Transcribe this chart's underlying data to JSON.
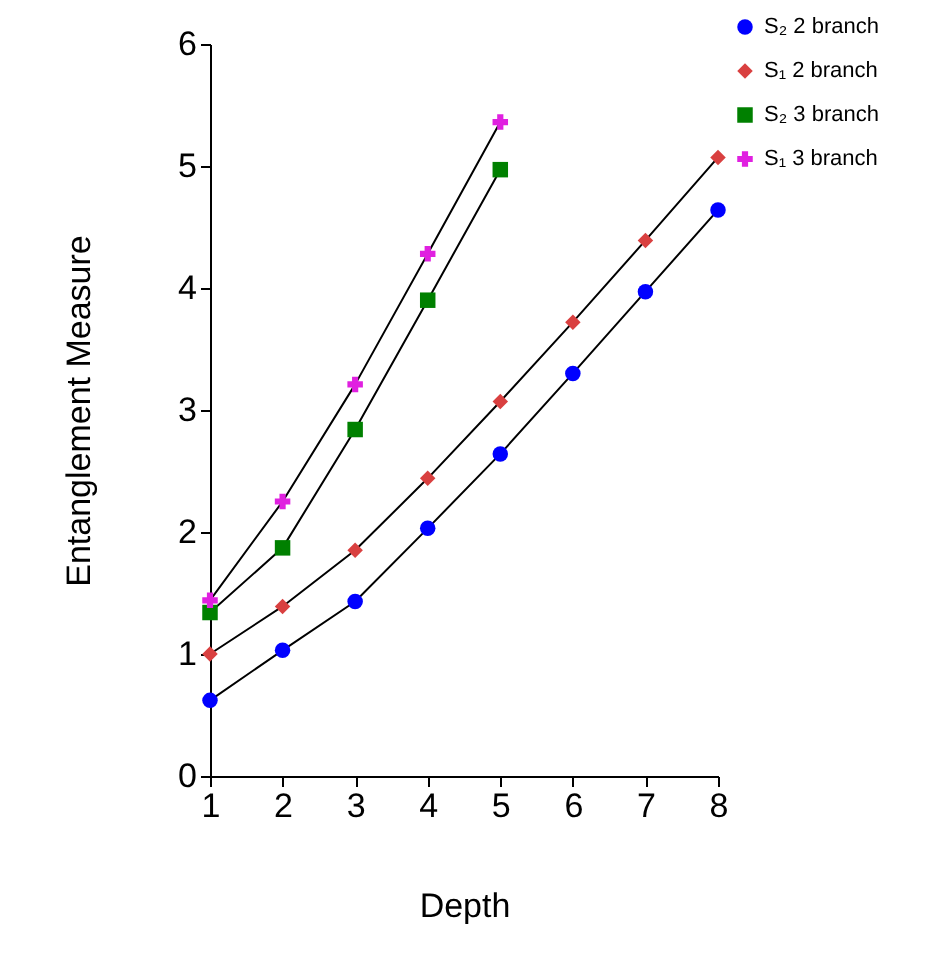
{
  "chart_data": {
    "type": "line",
    "xlabel": "Depth",
    "ylabel": "Entanglement Measure",
    "x": [
      1,
      2,
      3,
      4,
      5,
      6,
      7,
      8
    ],
    "series": [
      {
        "name": "S₂ 2 branch",
        "color": "#0000ff",
        "marker": "circle",
        "values": [
          0.62,
          1.03,
          1.43,
          2.03,
          2.64,
          3.3,
          3.97,
          4.64
        ]
      },
      {
        "name": "S₁ 2 branch",
        "color": "#d94040",
        "marker": "diamond",
        "values": [
          1.0,
          1.39,
          1.85,
          2.44,
          3.07,
          3.72,
          4.39,
          5.07
        ]
      },
      {
        "name": "S₂ 3 branch",
        "color": "#008000",
        "marker": "square",
        "values": [
          1.34,
          1.87,
          2.84,
          3.9,
          4.97,
          null,
          null,
          null
        ]
      },
      {
        "name": "S₁ 3 branch",
        "color": "#e020e0",
        "marker": "cross",
        "values": [
          1.44,
          2.25,
          3.21,
          4.28,
          5.36,
          null,
          null,
          null
        ]
      }
    ],
    "xlim": [
      1,
      8
    ],
    "ylim": [
      0,
      6
    ],
    "xticks": [
      1,
      2,
      3,
      4,
      5,
      6,
      7,
      8
    ],
    "yticks": [
      0,
      1,
      2,
      3,
      4,
      5,
      6
    ],
    "grid": false,
    "legend": "top right",
    "line_style": "solid"
  }
}
